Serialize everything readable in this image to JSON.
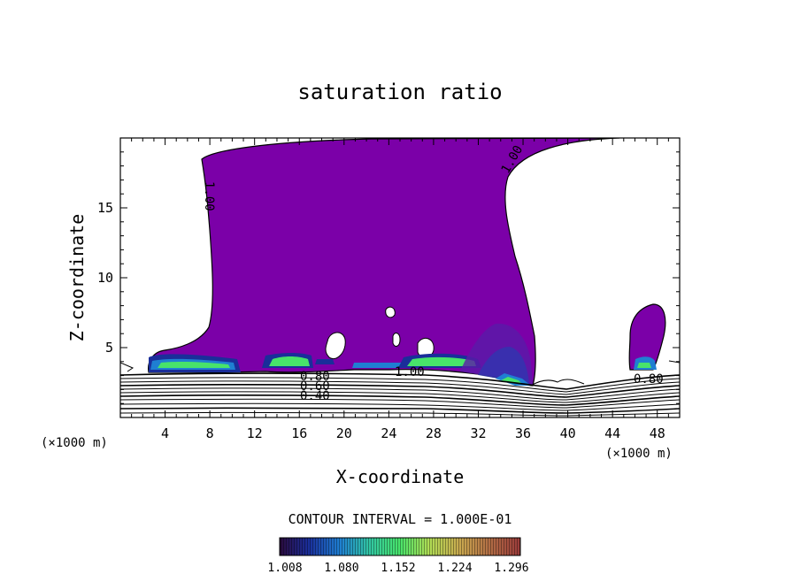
{
  "chart_data": {
    "type": "heatmap",
    "title": "saturation ratio",
    "xlabel": "X-coordinate",
    "ylabel": "Z-coordinate",
    "x_unit": "(×1000 m)",
    "y_unit": "(×1000 m)",
    "xlim": [
      0,
      50
    ],
    "ylim": [
      0,
      20
    ],
    "x_ticks": [
      "4",
      "8",
      "12",
      "16",
      "20",
      "24",
      "28",
      "32",
      "36",
      "40",
      "44",
      "48"
    ],
    "y_ticks": [
      "5",
      "10",
      "15"
    ],
    "contour_interval": "CONTOUR INTERVAL = 1.000E-01",
    "contour_labels": [
      "1.00",
      "1.00",
      "1.00",
      "0.80",
      "0.60",
      "0.40",
      "0.80"
    ],
    "colorbar": {
      "labels": [
        "1.008",
        "1.080",
        "1.152",
        "1.224",
        "1.296"
      ],
      "colors": [
        "#2a0a3c",
        "#1a2e9a",
        "#1f7fd2",
        "#33c9a0",
        "#48e36a",
        "#b0dd55",
        "#c9a84f",
        "#b06a44",
        "#9a3a3a"
      ]
    },
    "fill_color": "#7b00a8",
    "grid": false
  }
}
